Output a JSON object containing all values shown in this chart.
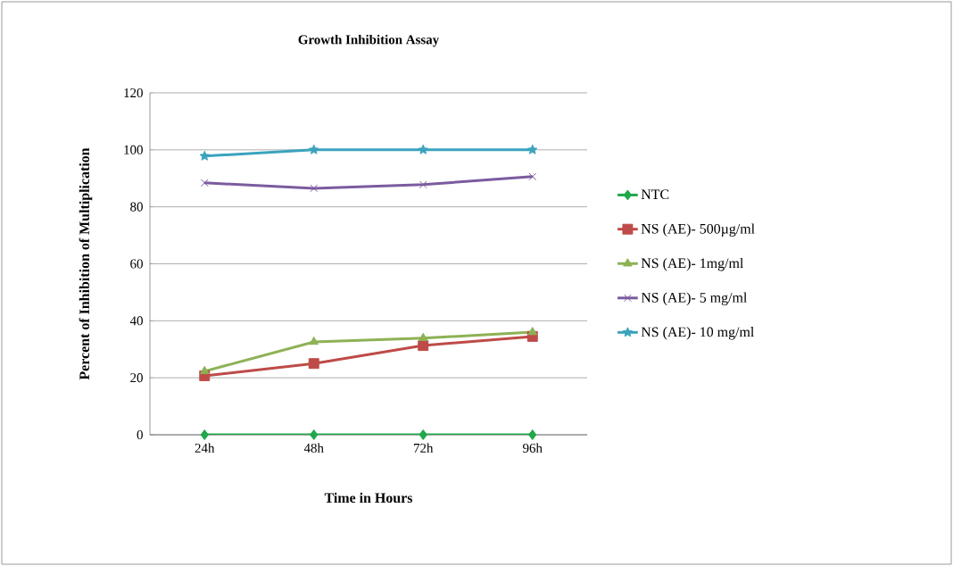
{
  "chart_data": {
    "type": "line",
    "title": "Growth Inhibition Assay",
    "xlabel": "Time in Hours",
    "ylabel": "Percent of Inhibition of Multiplication",
    "categories": [
      "24h",
      "48h",
      "72h",
      "96h"
    ],
    "series": [
      {
        "name": "NTC",
        "color": "#1fa84a",
        "marker": "diamond",
        "values": [
          0,
          0,
          0,
          0
        ]
      },
      {
        "name": "NS (AE)- 500µg/ml",
        "color": "#be4b48",
        "marker": "square",
        "values": [
          20.7,
          25,
          31.3,
          34.5
        ]
      },
      {
        "name": "NS (AE)- 1mg/ml",
        "color": "#8db255",
        "marker": "triangle",
        "values": [
          22.3,
          32.6,
          33.9,
          36
        ]
      },
      {
        "name": "NS (AE)- 5 mg/ml",
        "color": "#7c5b9f",
        "marker": "cross",
        "values": [
          88.4,
          86.5,
          87.8,
          90.6
        ]
      },
      {
        "name": "NS (AE)- 10 mg/ml",
        "color": "#3ba3be",
        "marker": "star",
        "values": [
          97.8,
          100,
          100,
          100
        ]
      }
    ],
    "ylim": [
      0,
      120
    ],
    "yticks": [
      0,
      20,
      40,
      60,
      80,
      100,
      120
    ],
    "grid": "y",
    "legend": "right"
  }
}
